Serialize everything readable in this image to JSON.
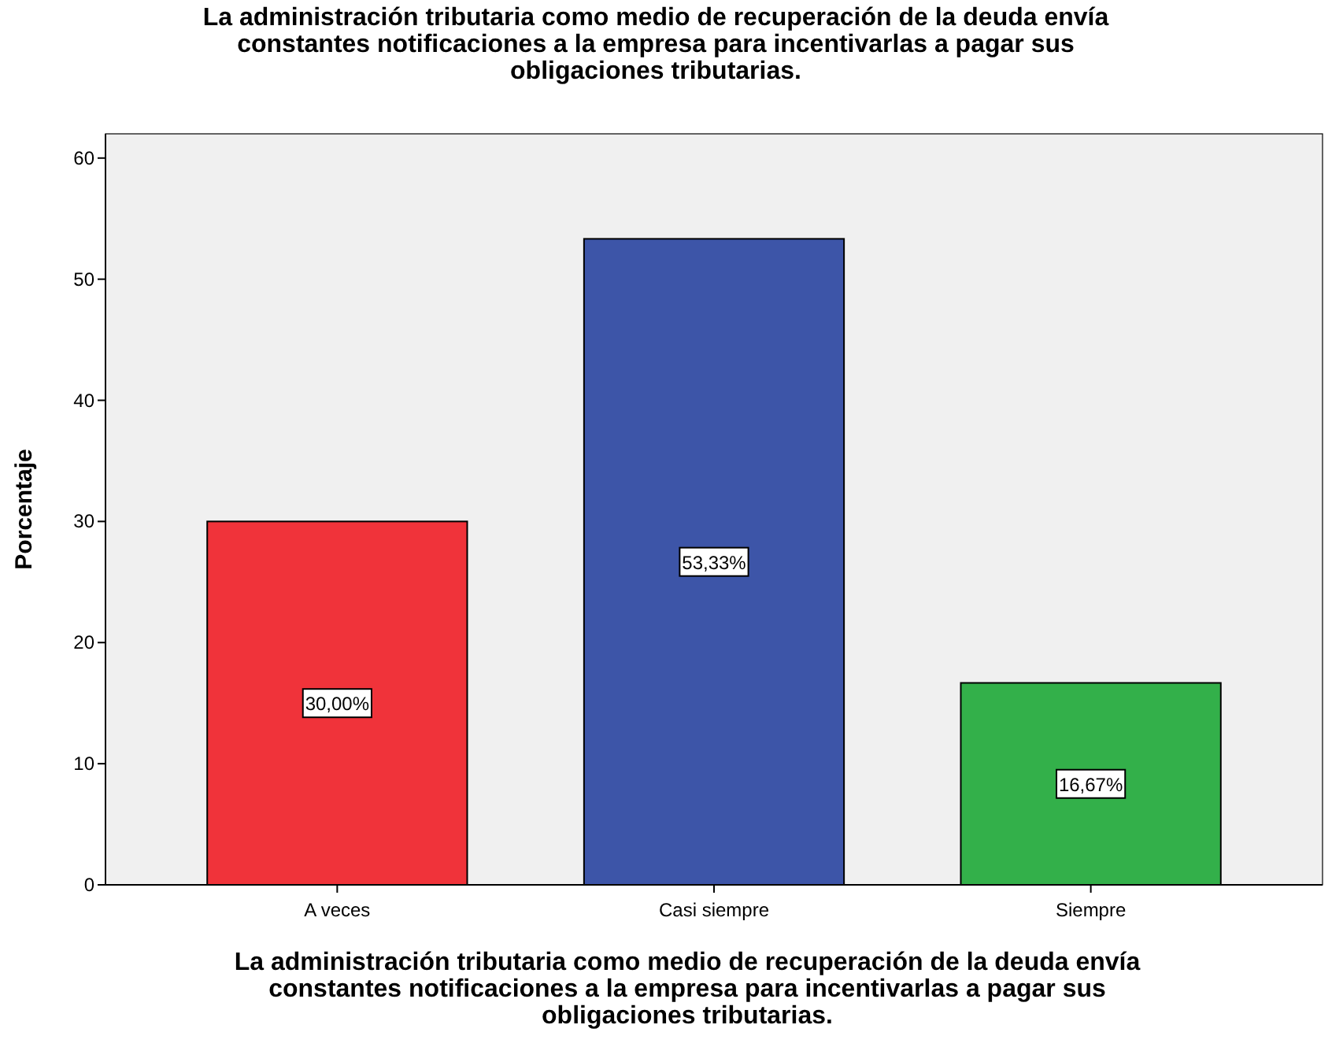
{
  "chart_data": {
    "type": "bar",
    "title": "La administración tributaria como medio de recuperación de la deuda envía\nconstantes notificaciones a la empresa para incentivarlas a pagar sus\nobligaciones tributarias.",
    "xlabel": "La administración tributaria como medio de recuperación de la deuda envía\nconstantes notificaciones a la empresa para incentivarlas a pagar sus\nobligaciones tributarias.",
    "ylabel": "Porcentaje",
    "categories": [
      "A veces",
      "Casi siempre",
      "Siempre"
    ],
    "values": [
      30,
      53.33,
      16.67
    ],
    "value_labels": [
      "30,00%",
      "53,33%",
      "16,67%"
    ],
    "colors": [
      "#f0333a",
      "#3d55a8",
      "#33b04a"
    ],
    "ylim": [
      0,
      62
    ],
    "yticks": [
      0,
      10,
      20,
      30,
      40,
      50,
      60
    ],
    "grid": false
  }
}
